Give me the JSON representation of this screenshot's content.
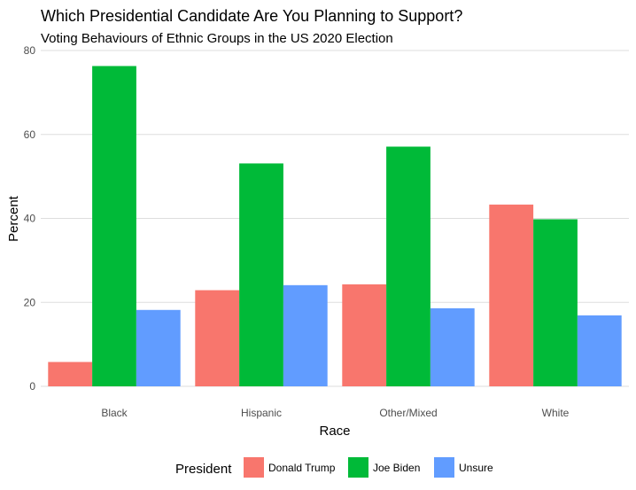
{
  "chart_data": {
    "type": "bar",
    "title": "Which Presidential Candidate Are You Planning to Support?",
    "subtitle": "Voting Behaviours of Ethnic Groups in the US 2020 Election",
    "xlabel": "Race",
    "ylabel": "Percent",
    "categories": [
      "Black",
      "Hispanic",
      "Other/Mixed",
      "White"
    ],
    "ylim": [
      0,
      80
    ],
    "yticks": [
      0,
      20,
      40,
      60,
      80
    ],
    "grid": true,
    "legend_title": "President",
    "legend_position": "bottom",
    "series": [
      {
        "name": "Donald Trump",
        "color": "#F8766D",
        "values": [
          5.8,
          22.9,
          24.3,
          43.3
        ]
      },
      {
        "name": "Joe Biden",
        "color": "#00BA38",
        "values": [
          76.3,
          53.1,
          57.1,
          39.8
        ]
      },
      {
        "name": "Unsure",
        "color": "#619CFF",
        "values": [
          18.2,
          24.1,
          18.6,
          16.9
        ]
      }
    ]
  }
}
